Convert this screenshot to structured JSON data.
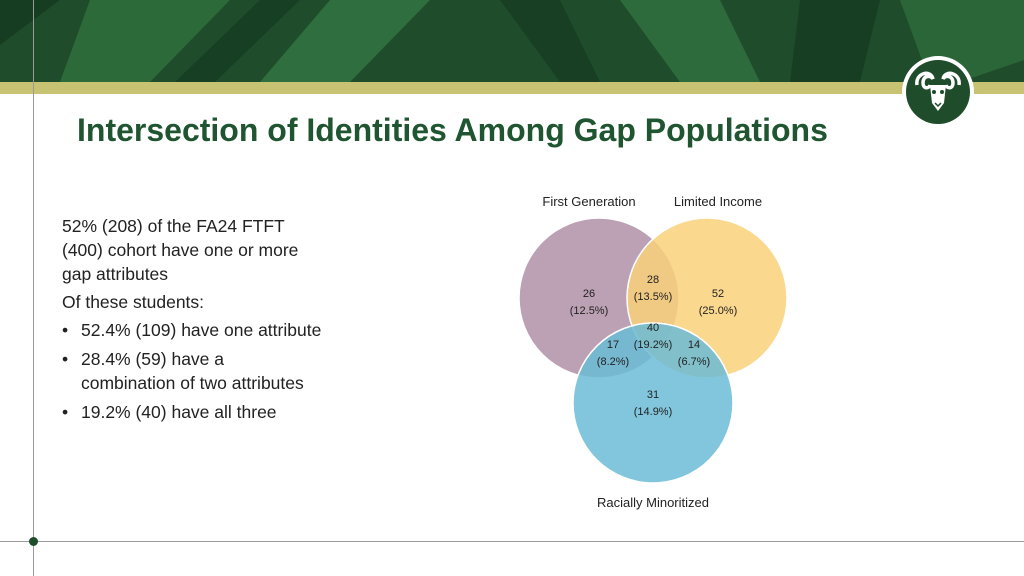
{
  "title": "Intersection of Identities Among Gap Populations",
  "intro": "52% (208) of the FA24 FTFT (400) cohort have one or more gap attributes",
  "subheading": "Of these students:",
  "bullets": [
    "52.4% (109) have one attribute",
    "28.4% (59) have a combination of two attributes",
    "19.2% (40) have all three"
  ],
  "venn": {
    "sets": [
      {
        "name": "First Generation",
        "color": "#b08fa6"
      },
      {
        "name": "Limited Income",
        "color": "#f9d17a"
      },
      {
        "name": "Racially Minoritized",
        "color": "#6bbcd6"
      }
    ],
    "regions": {
      "fg_only": {
        "count": "26",
        "pct": "(12.5%)"
      },
      "li_only": {
        "count": "52",
        "pct": "(25.0%)"
      },
      "rm_only": {
        "count": "31",
        "pct": "(14.9%)"
      },
      "fg_li": {
        "count": "28",
        "pct": "(13.5%)"
      },
      "fg_rm": {
        "count": "17",
        "pct": "(8.2%)"
      },
      "li_rm": {
        "count": "14",
        "pct": "(6.7%)"
      },
      "all": {
        "count": "40",
        "pct": "(19.2%)"
      }
    }
  },
  "colors": {
    "brand_green": "#1f4d2b",
    "title_green": "#1f5530",
    "gold": "#c8c372"
  }
}
